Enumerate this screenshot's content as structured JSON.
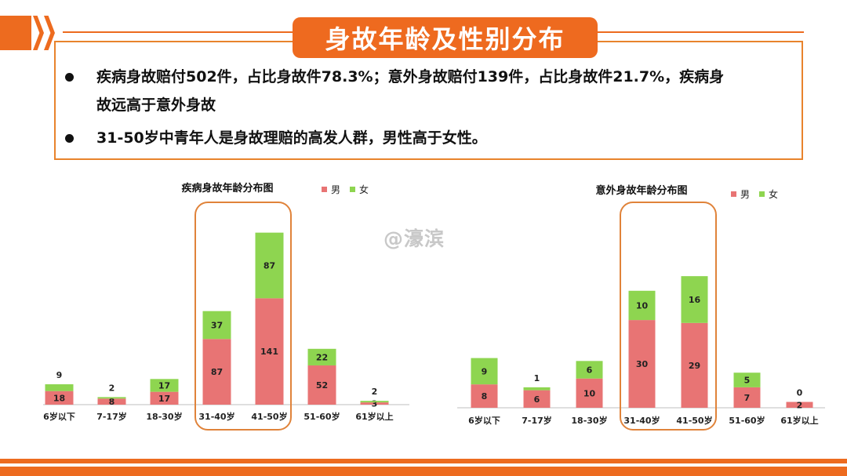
{
  "slide": {
    "title": "身故年龄及性别分布",
    "bullets": [
      "疾病身故赔付502件，占比身故件78.3%；意外身故赔付139件，占比身故件21.7%，疾病身",
      "故远高于意外身故",
      "31-50岁中青年人是身故理赔的高发人群，男性高于女性。"
    ],
    "watermark": "@濠滨",
    "accent_color": "#ed6b1f"
  },
  "chart_data": [
    {
      "type": "bar",
      "stacked": true,
      "title": "疾病身故年龄分布图",
      "categories": [
        "6岁以下",
        "7-17岁",
        "18-30岁",
        "31-40岁",
        "41-50岁",
        "51-60岁",
        "61岁以上"
      ],
      "series": [
        {
          "name": "男",
          "color": "#e87474",
          "values": [
            18,
            8,
            17,
            87,
            141,
            52,
            3
          ]
        },
        {
          "name": "女",
          "color": "#8ed550",
          "values": [
            9,
            2,
            17,
            37,
            87,
            22,
            2
          ]
        }
      ],
      "highlight_categories": [
        "31-40岁",
        "41-50岁"
      ],
      "legend": "top-right",
      "grid": false
    },
    {
      "type": "bar",
      "stacked": true,
      "title": "意外身故年龄分布图",
      "categories": [
        "6岁以下",
        "7-17岁",
        "18-30岁",
        "31-40岁",
        "41-50岁",
        "51-60岁",
        "61岁以上"
      ],
      "series": [
        {
          "name": "男",
          "color": "#e87474",
          "values": [
            8,
            6,
            10,
            30,
            29,
            7,
            2
          ]
        },
        {
          "name": "女",
          "color": "#8ed550",
          "values": [
            9,
            1,
            6,
            10,
            16,
            5,
            0
          ]
        }
      ],
      "highlight_categories": [
        "31-40岁",
        "41-50岁"
      ],
      "legend": "top-right",
      "grid": false
    }
  ]
}
